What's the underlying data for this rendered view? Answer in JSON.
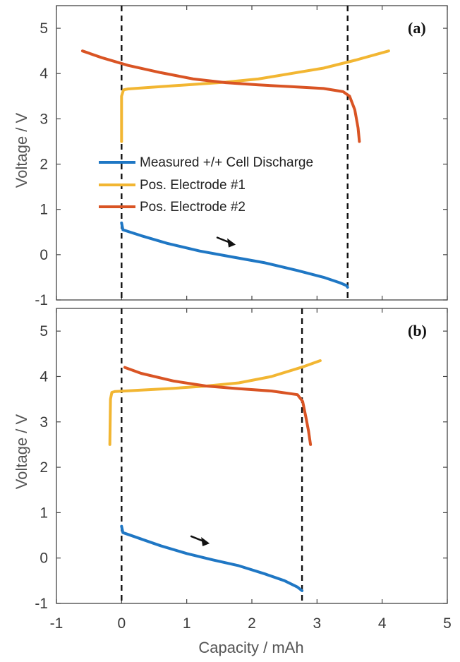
{
  "figure": {
    "xlabel": "Capacity / mAh",
    "x_tick_labels": [
      "-1",
      "0",
      "1",
      "2",
      "3",
      "4",
      "5"
    ],
    "xlim": [
      -1,
      5
    ]
  },
  "legend": {
    "entries": [
      {
        "label": "Measured +/+ Cell Discharge",
        "color": "#1f77c4"
      },
      {
        "label": "Pos. Electrode #1",
        "color": "#f2b632"
      },
      {
        "label": "Pos. Electrode #2",
        "color": "#d95424"
      }
    ]
  },
  "chart_data": [
    {
      "type": "line",
      "panel": "(a)",
      "xlabel": "",
      "ylabel": "Voltage / V",
      "xlim": [
        -1,
        5
      ],
      "ylim": [
        -1,
        5.5
      ],
      "y_tick_labels": [
        "-1",
        "0",
        "1",
        "2",
        "3",
        "4",
        "5"
      ],
      "grid": false,
      "legend_position": "middle-left",
      "vlines": [
        0,
        3.47
      ],
      "arrow": {
        "x": 1.6,
        "y": 0.3,
        "direction": "right"
      },
      "series": [
        {
          "name": "Measured +/+ Cell Discharge",
          "color": "#1f77c4",
          "x": [
            0,
            0.02,
            0.3,
            0.7,
            1.2,
            1.7,
            2.2,
            2.7,
            3.1,
            3.35,
            3.45,
            3.47
          ],
          "y": [
            0.7,
            0.55,
            0.42,
            0.25,
            0.08,
            -0.05,
            -0.18,
            -0.35,
            -0.5,
            -0.62,
            -0.68,
            -0.72
          ]
        },
        {
          "name": "Pos. Electrode #1",
          "color": "#f2b632",
          "x": [
            0,
            0,
            0.03,
            0.1,
            0.6,
            1.1,
            1.6,
            2.1,
            2.6,
            3.1,
            3.6,
            4.1
          ],
          "y": [
            2.5,
            3.5,
            3.64,
            3.66,
            3.71,
            3.76,
            3.81,
            3.88,
            4.0,
            4.12,
            4.3,
            4.5
          ]
        },
        {
          "name": "Pos. Electrode #2",
          "color": "#d95424",
          "x": [
            -0.6,
            -0.3,
            0.1,
            0.6,
            1.1,
            1.6,
            2.1,
            2.6,
            3.1,
            3.4,
            3.5,
            3.58,
            3.63,
            3.65
          ],
          "y": [
            4.5,
            4.35,
            4.18,
            4.02,
            3.88,
            3.8,
            3.75,
            3.71,
            3.67,
            3.6,
            3.5,
            3.2,
            2.8,
            2.5
          ]
        }
      ]
    },
    {
      "type": "line",
      "panel": "(b)",
      "xlabel": "Capacity / mAh",
      "ylabel": "Voltage / V",
      "xlim": [
        -1,
        5
      ],
      "ylim": [
        -1,
        5.5
      ],
      "y_tick_labels": [
        "-1",
        "0",
        "1",
        "2",
        "3",
        "4",
        "5"
      ],
      "grid": false,
      "vlines": [
        0,
        2.77
      ],
      "arrow": {
        "x": 1.2,
        "y": 0.4,
        "direction": "right"
      },
      "series": [
        {
          "name": "Measured +/+ Cell Discharge",
          "color": "#1f77c4",
          "x": [
            0,
            0.02,
            0.3,
            0.6,
            1.0,
            1.4,
            1.8,
            2.2,
            2.5,
            2.7,
            2.77
          ],
          "y": [
            0.7,
            0.56,
            0.42,
            0.27,
            0.1,
            -0.04,
            -0.17,
            -0.35,
            -0.5,
            -0.64,
            -0.72
          ]
        },
        {
          "name": "Pos. Electrode #1",
          "color": "#f2b632",
          "x": [
            -0.18,
            -0.17,
            -0.15,
            -0.1,
            0.3,
            0.8,
            1.3,
            1.8,
            2.3,
            2.8,
            3.05
          ],
          "y": [
            2.5,
            3.5,
            3.65,
            3.67,
            3.7,
            3.74,
            3.79,
            3.86,
            4.0,
            4.22,
            4.35
          ]
        },
        {
          "name": "Pos. Electrode #2",
          "color": "#d95424",
          "x": [
            0.05,
            0.3,
            0.8,
            1.3,
            1.8,
            2.3,
            2.7,
            2.78,
            2.83,
            2.87,
            2.9
          ],
          "y": [
            4.2,
            4.07,
            3.9,
            3.79,
            3.73,
            3.68,
            3.6,
            3.45,
            3.1,
            2.8,
            2.5
          ]
        }
      ]
    }
  ]
}
